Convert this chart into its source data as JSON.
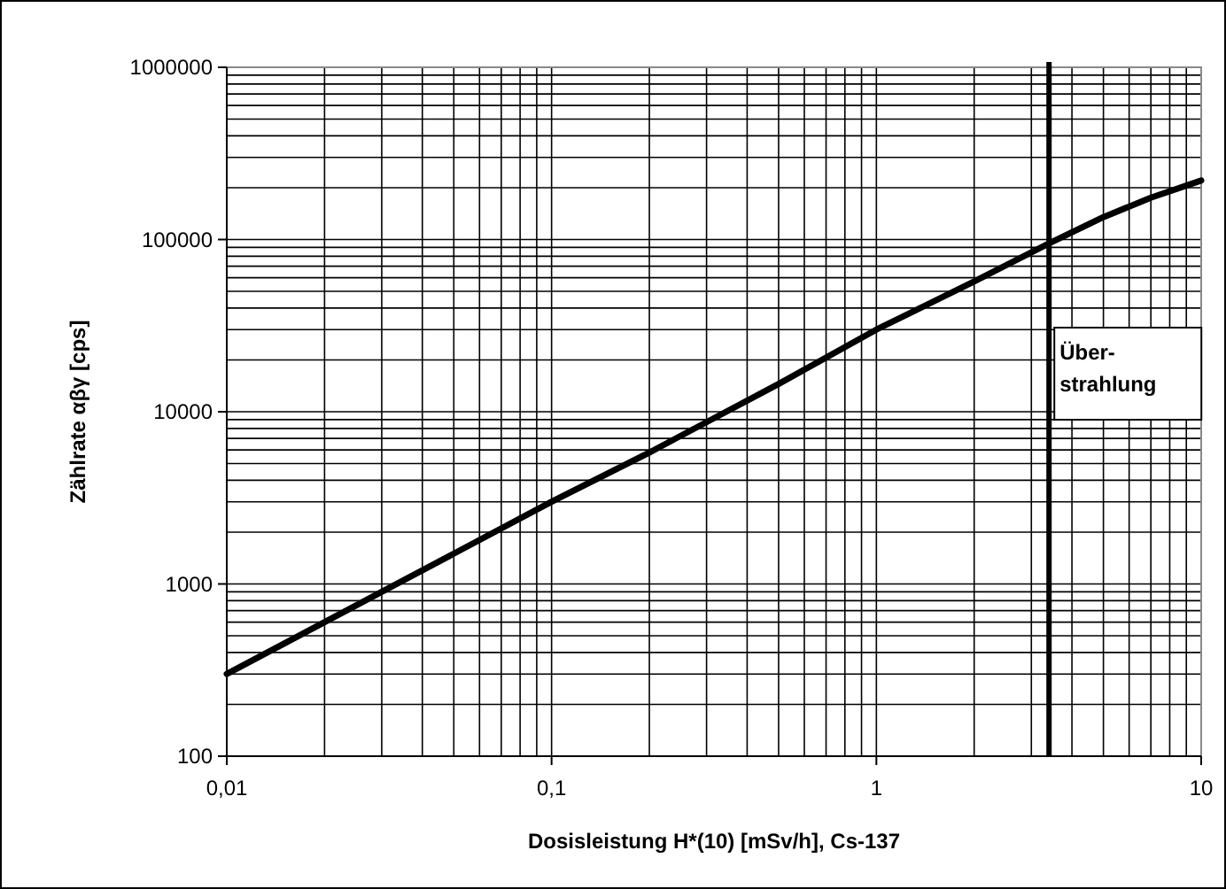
{
  "chart_data": {
    "type": "line",
    "xlabel": "Dosisleistung H*(10) [mSv/h], Cs-137",
    "ylabel": "Zählrate αβγ [cps]",
    "log": "xy",
    "grid": true,
    "line_style": "solid",
    "marker": "none",
    "x": [
      0.01,
      0.02,
      0.03,
      0.05,
      0.1,
      0.2,
      0.3,
      0.5,
      1,
      2,
      3.4,
      5,
      7,
      10
    ],
    "series": [
      {
        "color": "#000000",
        "values": [
          300,
          600,
          900,
          1500,
          3000,
          5800,
          8700,
          14500,
          30000,
          57000,
          95000,
          135000,
          175000,
          220000
        ]
      }
    ],
    "xlim": [
      0.01,
      10
    ],
    "xticks": [
      {
        "value": 0.01,
        "label": "0,01"
      },
      {
        "value": 0.1,
        "label": "0,1"
      },
      1,
      10
    ],
    "ylim": [
      100,
      1000000
    ],
    "yticks": [
      100,
      1000,
      10000,
      100000,
      1000000
    ],
    "ref_lines": [
      {
        "axis": "x",
        "value": 3.4,
        "label": "Über-\nstrahlung",
        "color": "#000000"
      }
    ]
  }
}
